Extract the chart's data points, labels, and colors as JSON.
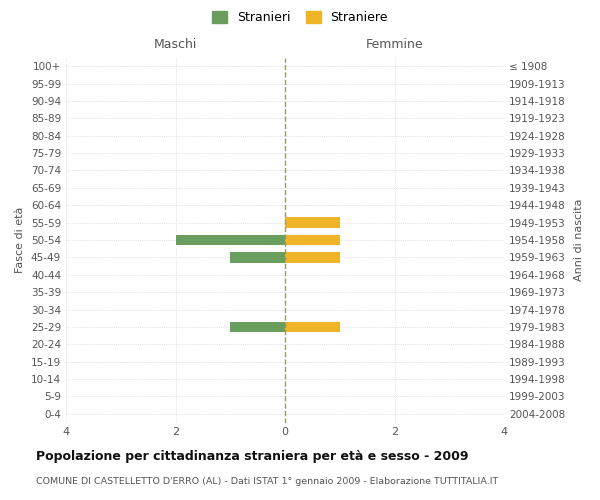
{
  "age_groups": [
    "100+",
    "95-99",
    "90-94",
    "85-89",
    "80-84",
    "75-79",
    "70-74",
    "65-69",
    "60-64",
    "55-59",
    "50-54",
    "45-49",
    "40-44",
    "35-39",
    "30-34",
    "25-29",
    "20-24",
    "15-19",
    "10-14",
    "5-9",
    "0-4"
  ],
  "birth_years": [
    "≤ 1908",
    "1909-1913",
    "1914-1918",
    "1919-1923",
    "1924-1928",
    "1929-1933",
    "1934-1938",
    "1939-1943",
    "1944-1948",
    "1949-1953",
    "1954-1958",
    "1959-1963",
    "1964-1968",
    "1969-1973",
    "1974-1978",
    "1979-1983",
    "1984-1988",
    "1989-1993",
    "1994-1998",
    "1999-2003",
    "2004-2008"
  ],
  "males": [
    0,
    0,
    0,
    0,
    0,
    0,
    0,
    0,
    0,
    0,
    2,
    1,
    0,
    0,
    0,
    1,
    0,
    0,
    0,
    0,
    0
  ],
  "females": [
    0,
    0,
    0,
    0,
    0,
    0,
    0,
    0,
    0,
    1,
    1,
    1,
    0,
    0,
    0,
    1,
    0,
    0,
    0,
    0,
    0
  ],
  "xlim": 4,
  "male_color": "#6a9e5e",
  "female_color": "#f0b429",
  "title": "Popolazione per cittadinanza straniera per età e sesso - 2009",
  "subtitle": "COMUNE DI CASTELLETTO D'ERRO (AL) - Dati ISTAT 1° gennaio 2009 - Elaborazione TUTTITALIA.IT",
  "ylabel_left": "Fasce di età",
  "ylabel_right": "Anni di nascita",
  "xlabel_maschi": "Maschi",
  "xlabel_femmine": "Femmine",
  "legend_male": "Stranieri",
  "legend_female": "Straniere",
  "bg_color": "#ffffff",
  "grid_color": "#cccccc",
  "center_line_color": "#999966"
}
